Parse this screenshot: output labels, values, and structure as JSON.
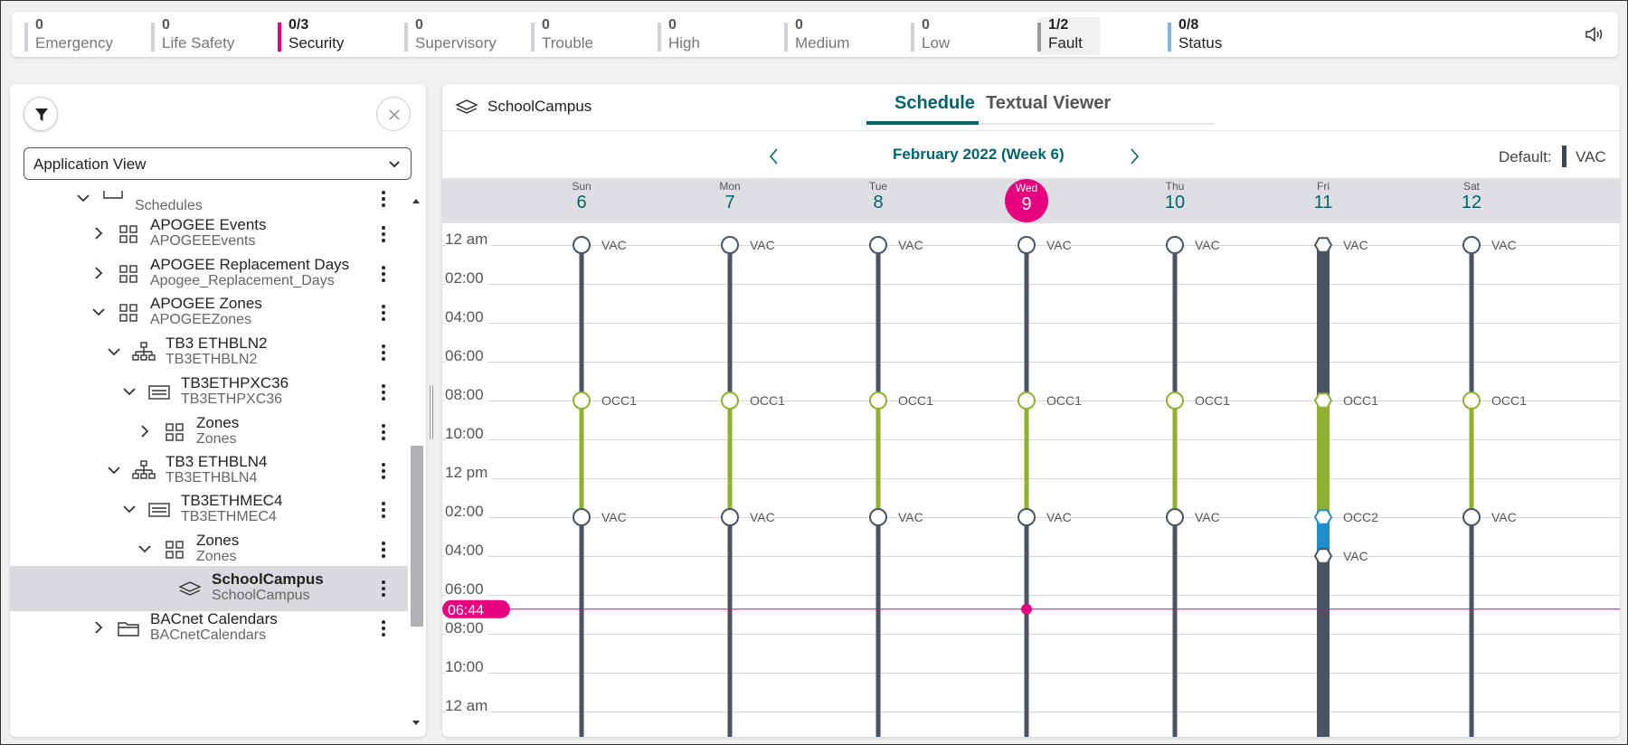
{
  "alarms": [
    {
      "count": "0",
      "label": "Emergency",
      "color": "#d0d3d8",
      "active": false
    },
    {
      "count": "0",
      "label": "Life Safety",
      "color": "#d0d3d8",
      "active": false
    },
    {
      "count": "0/3",
      "label": "Security",
      "color": "#e6007e",
      "active": true
    },
    {
      "count": "0",
      "label": "Supervisory",
      "color": "#d0d3d8",
      "active": false
    },
    {
      "count": "0",
      "label": "Trouble",
      "color": "#d0d3d8",
      "active": false
    },
    {
      "count": "0",
      "label": "High",
      "color": "#d0d3d8",
      "active": false
    },
    {
      "count": "0",
      "label": "Medium",
      "color": "#d0d3d8",
      "active": false
    },
    {
      "count": "0",
      "label": "Low",
      "color": "#d0d3d8",
      "active": false
    },
    {
      "count": "1/2",
      "label": "Fault",
      "color": "#9b9ba0",
      "active": true
    },
    {
      "count": "0/8",
      "label": "Status",
      "color": "#7fb8e6",
      "active": true
    }
  ],
  "left": {
    "view_select": "Application View",
    "tree": [
      {
        "t1": "",
        "t2": "Schedules",
        "icon": "schedules-icon",
        "exp": "down",
        "indent": 0,
        "partial": true
      },
      {
        "t1": "APOGEE Events",
        "t2": "APOGEEEvents",
        "icon": "grid-icon",
        "exp": "right",
        "indent": 1
      },
      {
        "t1": "APOGEE Replacement Days",
        "t2": "Apogee_Replacement_Days",
        "icon": "grid-icon",
        "exp": "right",
        "indent": 1
      },
      {
        "t1": "APOGEE Zones",
        "t2": "APOGEEZones",
        "icon": "grid-icon",
        "exp": "down",
        "indent": 1
      },
      {
        "t1": "TB3 ETHBLN2",
        "t2": "TB3ETHBLN2",
        "icon": "network-icon",
        "exp": "down",
        "indent": 2
      },
      {
        "t1": "TB3ETHPXC36",
        "t2": "TB3ETHPXC36",
        "icon": "controller-icon",
        "exp": "down",
        "indent": 3
      },
      {
        "t1": "Zones",
        "t2": "Zones",
        "icon": "grid-icon",
        "exp": "right",
        "indent": 4
      },
      {
        "t1": "TB3 ETHBLN4",
        "t2": "TB3ETHBLN4",
        "icon": "network-icon",
        "exp": "down",
        "indent": 2
      },
      {
        "t1": "TB3ETHMEC4",
        "t2": "TB3ETHMEC4",
        "icon": "controller-icon",
        "exp": "down",
        "indent": 3
      },
      {
        "t1": "Zones",
        "t2": "Zones",
        "icon": "grid-icon",
        "exp": "down",
        "indent": 4
      },
      {
        "t1": "SchoolCampus",
        "t2": "SchoolCampus",
        "icon": "layers-icon",
        "exp": "",
        "indent": 5,
        "selected": true
      },
      {
        "t1": "BACnet Calendars",
        "t2": "BACnetCalendars",
        "icon": "folder-icon",
        "exp": "right",
        "indent": 1
      }
    ]
  },
  "right": {
    "object_name": "SchoolCampus",
    "tabs": [
      "Schedule",
      "Textual Viewer"
    ],
    "week_title": "February 2022 (Week 6)",
    "default_label": "Default:",
    "default_value": "VAC",
    "days": [
      {
        "name": "Sun",
        "date": "6"
      },
      {
        "name": "Mon",
        "date": "7"
      },
      {
        "name": "Tue",
        "date": "8"
      },
      {
        "name": "Wed",
        "date": "9",
        "today": true
      },
      {
        "name": "Thu",
        "date": "10"
      },
      {
        "name": "Fri",
        "date": "11"
      },
      {
        "name": "Sat",
        "date": "12"
      }
    ],
    "hour_labels": [
      "12 am",
      "02:00",
      "04:00",
      "06:00",
      "08:00",
      "10:00",
      "12 pm",
      "02:00",
      "04:00",
      "06:00",
      "08:00",
      "10:00",
      "12 am"
    ],
    "current_time": "06:44",
    "colors": {
      "vac": "#4a5561",
      "occ1": "#8fb031",
      "occ2": "#1e8ec8",
      "now": "#e6007e",
      "accent": "#00646e"
    },
    "schedule": [
      [
        {
          "time": "00:00",
          "label": "VAC"
        },
        {
          "time": "08:00",
          "label": "OCC1"
        },
        {
          "time": "14:00",
          "label": "VAC"
        }
      ],
      [
        {
          "time": "00:00",
          "label": "VAC"
        },
        {
          "time": "08:00",
          "label": "OCC1"
        },
        {
          "time": "14:00",
          "label": "VAC"
        }
      ],
      [
        {
          "time": "00:00",
          "label": "VAC"
        },
        {
          "time": "08:00",
          "label": "OCC1"
        },
        {
          "time": "14:00",
          "label": "VAC"
        }
      ],
      [
        {
          "time": "00:00",
          "label": "VAC"
        },
        {
          "time": "08:00",
          "label": "OCC1"
        },
        {
          "time": "14:00",
          "label": "VAC"
        }
      ],
      [
        {
          "time": "00:00",
          "label": "VAC"
        },
        {
          "time": "08:00",
          "label": "OCC1"
        },
        {
          "time": "14:00",
          "label": "VAC"
        }
      ],
      [
        {
          "time": "00:00",
          "label": "VAC",
          "exception": true
        },
        {
          "time": "08:00",
          "label": "OCC1",
          "exception": true
        },
        {
          "time": "14:00",
          "label": "OCC2",
          "exception": true
        },
        {
          "time": "16:00",
          "label": "VAC",
          "exception": true
        }
      ],
      [
        {
          "time": "00:00",
          "label": "VAC"
        },
        {
          "time": "08:00",
          "label": "OCC1"
        },
        {
          "time": "14:00",
          "label": "VAC"
        }
      ]
    ]
  }
}
